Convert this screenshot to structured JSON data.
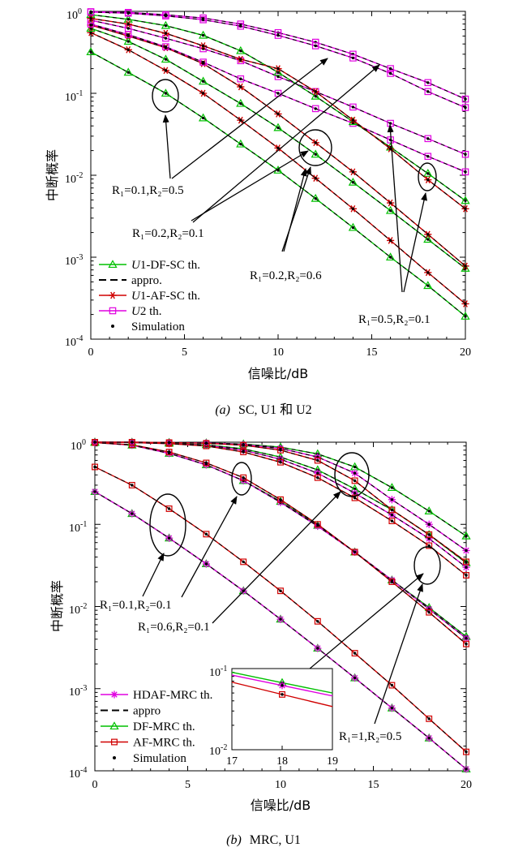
{
  "colors": {
    "df": "#00c000",
    "af": "#d00000",
    "hd": "#e000e0",
    "sim": "#000000",
    "u2": "#e000e0"
  },
  "icons": {
    "triangle": "triangle-marker-icon",
    "star": "asterisk-marker-icon",
    "square": "square-marker-icon",
    "dot": "dot-marker-icon"
  },
  "chart_data": [
    {
      "id": "a",
      "type": "line",
      "caption_letter": "(a)",
      "caption_rest": "SC, U1 和 U2",
      "xlabel": "信噪比/dB",
      "ylabel": "中断概率",
      "xlim": [
        0,
        20
      ],
      "ylim_log10": [
        -4,
        0
      ],
      "yscale": "log",
      "grid": false,
      "xticks": [
        "0",
        "5",
        "10",
        "15",
        "20"
      ],
      "yticks": [
        {
          "base": "10",
          "exp": "0"
        },
        {
          "base": "10",
          "exp": "-1"
        },
        {
          "base": "10",
          "exp": "-2"
        },
        {
          "base": "10",
          "exp": "-3"
        },
        {
          "base": "10",
          "exp": "-4"
        }
      ],
      "legend": {
        "placement": "bottom-left",
        "entries": [
          {
            "kind": "df",
            "ital": "U",
            "label": "1-DF-SC th."
          },
          {
            "kind": "appro",
            "ital": "",
            "label": "appro."
          },
          {
            "kind": "af",
            "ital": "U",
            "label": "1-AF-SC th."
          },
          {
            "kind": "u2",
            "ital": "U",
            "label": "2 th."
          },
          {
            "kind": "sim",
            "ital": "",
            "label": "Simulation"
          }
        ]
      },
      "x": [
        0,
        2,
        4,
        6,
        8,
        10,
        12,
        14,
        16,
        18,
        20
      ],
      "series": [
        {
          "kind": "df",
          "values": [
            0.32,
            0.18,
            0.1,
            0.05,
            0.024,
            0.0115,
            0.0052,
            0.0023,
            0.001,
            0.00045,
            0.00019
          ]
        },
        {
          "kind": "af",
          "values": [
            0.55,
            0.34,
            0.19,
            0.1,
            0.047,
            0.0215,
            0.0092,
            0.0039,
            0.0016,
            0.00065,
            0.00027
          ]
        },
        {
          "kind": "df",
          "values": [
            0.62,
            0.43,
            0.26,
            0.14,
            0.075,
            0.038,
            0.018,
            0.0082,
            0.0037,
            0.00165,
            0.00073
          ]
        },
        {
          "kind": "af",
          "values": [
            0.68,
            0.5,
            0.36,
            0.23,
            0.12,
            0.056,
            0.025,
            0.011,
            0.0046,
            0.0019,
            0.00078
          ]
        },
        {
          "kind": "u2",
          "values": [
            0.7,
            0.52,
            0.37,
            0.24,
            0.15,
            0.1,
            0.065,
            0.043,
            0.027,
            0.017,
            0.011
          ]
        },
        {
          "kind": "u2",
          "values": [
            0.78,
            0.62,
            0.47,
            0.35,
            0.25,
            0.16,
            0.105,
            0.068,
            0.043,
            0.028,
            0.018
          ]
        },
        {
          "kind": "df",
          "values": [
            0.91,
            0.8,
            0.67,
            0.51,
            0.33,
            0.18,
            0.092,
            0.045,
            0.022,
            0.0105,
            0.0049
          ]
        },
        {
          "kind": "af",
          "values": [
            0.82,
            0.7,
            0.54,
            0.38,
            0.26,
            0.2,
            0.105,
            0.047,
            0.021,
            0.0088,
            0.0039
          ]
        },
        {
          "kind": "u2",
          "values": [
            0.99,
            0.97,
            0.91,
            0.83,
            0.7,
            0.55,
            0.42,
            0.3,
            0.2,
            0.135,
            0.085
          ]
        },
        {
          "kind": "u2",
          "values": [
            0.98,
            0.95,
            0.88,
            0.79,
            0.66,
            0.51,
            0.38,
            0.27,
            0.175,
            0.105,
            0.067
          ]
        }
      ],
      "annotations": [
        {
          "text": "R₁=0.1,R₂=0.5"
        },
        {
          "text": "R₁=0.2,R₂=0.1"
        },
        {
          "text": "R₁=0.2,R₂=0.6"
        },
        {
          "text": "R₁=0.5,R₂=0.1"
        }
      ]
    },
    {
      "id": "b",
      "type": "line",
      "caption_letter": "(b)",
      "caption_rest": "MRC, U1",
      "xlabel": "信噪比/dB",
      "ylabel": "中断概率",
      "xlim": [
        0,
        20
      ],
      "ylim_log10": [
        -4,
        0
      ],
      "yscale": "log",
      "grid": false,
      "xticks": [
        "0",
        "5",
        "10",
        "15",
        "20"
      ],
      "yticks": [
        {
          "base": "10",
          "exp": "0"
        },
        {
          "base": "10",
          "exp": "-1"
        },
        {
          "base": "10",
          "exp": "-2"
        },
        {
          "base": "10",
          "exp": "-3"
        },
        {
          "base": "10",
          "exp": "-4"
        }
      ],
      "legend": {
        "placement": "bottom-left",
        "entries": [
          {
            "kind": "hd",
            "ital": "",
            "label": "HDAF-MRC th."
          },
          {
            "kind": "appro",
            "ital": "",
            "label": "appro"
          },
          {
            "kind": "df",
            "ital": "",
            "label": "DF-MRC th."
          },
          {
            "kind": "af",
            "ital": "",
            "label": "AF-MRC th."
          },
          {
            "kind": "sim",
            "ital": "",
            "label": "Simulation"
          }
        ]
      },
      "x": [
        0,
        2,
        4,
        6,
        8,
        10,
        12,
        14,
        16,
        18,
        20
      ],
      "series": [
        {
          "kind": "df",
          "values": [
            0.25,
            0.135,
            0.068,
            0.033,
            0.0155,
            0.007,
            0.0031,
            0.00135,
            0.00058,
            0.00025,
            0.000105
          ]
        },
        {
          "kind": "hd",
          "values": [
            0.25,
            0.135,
            0.068,
            0.033,
            0.0155,
            0.007,
            0.0031,
            0.00135,
            0.00058,
            0.00025,
            0.000105
          ]
        },
        {
          "kind": "af",
          "values": [
            0.5,
            0.3,
            0.155,
            0.076,
            0.035,
            0.0155,
            0.0066,
            0.0027,
            0.0011,
            0.00043,
            0.00017
          ]
        },
        {
          "kind": "df",
          "values": [
            0.99,
            0.92,
            0.73,
            0.53,
            0.34,
            0.19,
            0.097,
            0.046,
            0.021,
            0.0097,
            0.0043
          ]
        },
        {
          "kind": "hd",
          "values": [
            0.99,
            0.92,
            0.73,
            0.53,
            0.34,
            0.185,
            0.095,
            0.046,
            0.021,
            0.0093,
            0.0041
          ]
        },
        {
          "kind": "af",
          "values": [
            0.99,
            0.93,
            0.76,
            0.56,
            0.37,
            0.2,
            0.1,
            0.046,
            0.02,
            0.0085,
            0.0035
          ]
        },
        {
          "kind": "df",
          "values": [
            1.0,
            0.99,
            0.97,
            0.93,
            0.83,
            0.66,
            0.46,
            0.27,
            0.15,
            0.075,
            0.034
          ]
        },
        {
          "kind": "hd",
          "values": [
            1.0,
            0.99,
            0.96,
            0.92,
            0.8,
            0.62,
            0.42,
            0.24,
            0.13,
            0.067,
            0.03
          ]
        },
        {
          "kind": "af",
          "values": [
            1.0,
            0.99,
            0.96,
            0.9,
            0.76,
            0.57,
            0.37,
            0.21,
            0.11,
            0.055,
            0.024
          ]
        },
        {
          "kind": "df",
          "values": [
            1.0,
            1.0,
            0.99,
            0.98,
            0.95,
            0.87,
            0.72,
            0.5,
            0.28,
            0.145,
            0.072
          ]
        },
        {
          "kind": "hd",
          "values": [
            1.0,
            1.0,
            0.99,
            0.98,
            0.94,
            0.84,
            0.66,
            0.42,
            0.2,
            0.1,
            0.048
          ]
        },
        {
          "kind": "af",
          "values": [
            1.0,
            1.0,
            0.99,
            0.97,
            0.92,
            0.8,
            0.6,
            0.34,
            0.15,
            0.075,
            0.035
          ]
        }
      ],
      "inset": {
        "xlim": [
          17,
          19
        ],
        "ylim_log10": [
          -2,
          -1
        ],
        "xticks": [
          "17",
          "18",
          "19"
        ],
        "yticks": [
          {
            "base": "10",
            "exp": "-1"
          },
          {
            "base": "10",
            "exp": "-2"
          }
        ],
        "x": [
          17,
          18,
          19
        ],
        "series": [
          {
            "kind": "df",
            "values": [
              0.09,
              0.067,
              0.05
            ]
          },
          {
            "kind": "hd",
            "values": [
              0.083,
              0.062,
              0.046
            ]
          },
          {
            "kind": "af",
            "values": [
              0.068,
              0.048,
              0.034
            ]
          }
        ]
      },
      "annotations": [
        {
          "text": "R₁=0.1,R₂=0.1"
        },
        {
          "text": "R₁=0.6,R₂=0.1"
        },
        {
          "text": "R₁=1,R₂=0.5"
        }
      ]
    }
  ]
}
